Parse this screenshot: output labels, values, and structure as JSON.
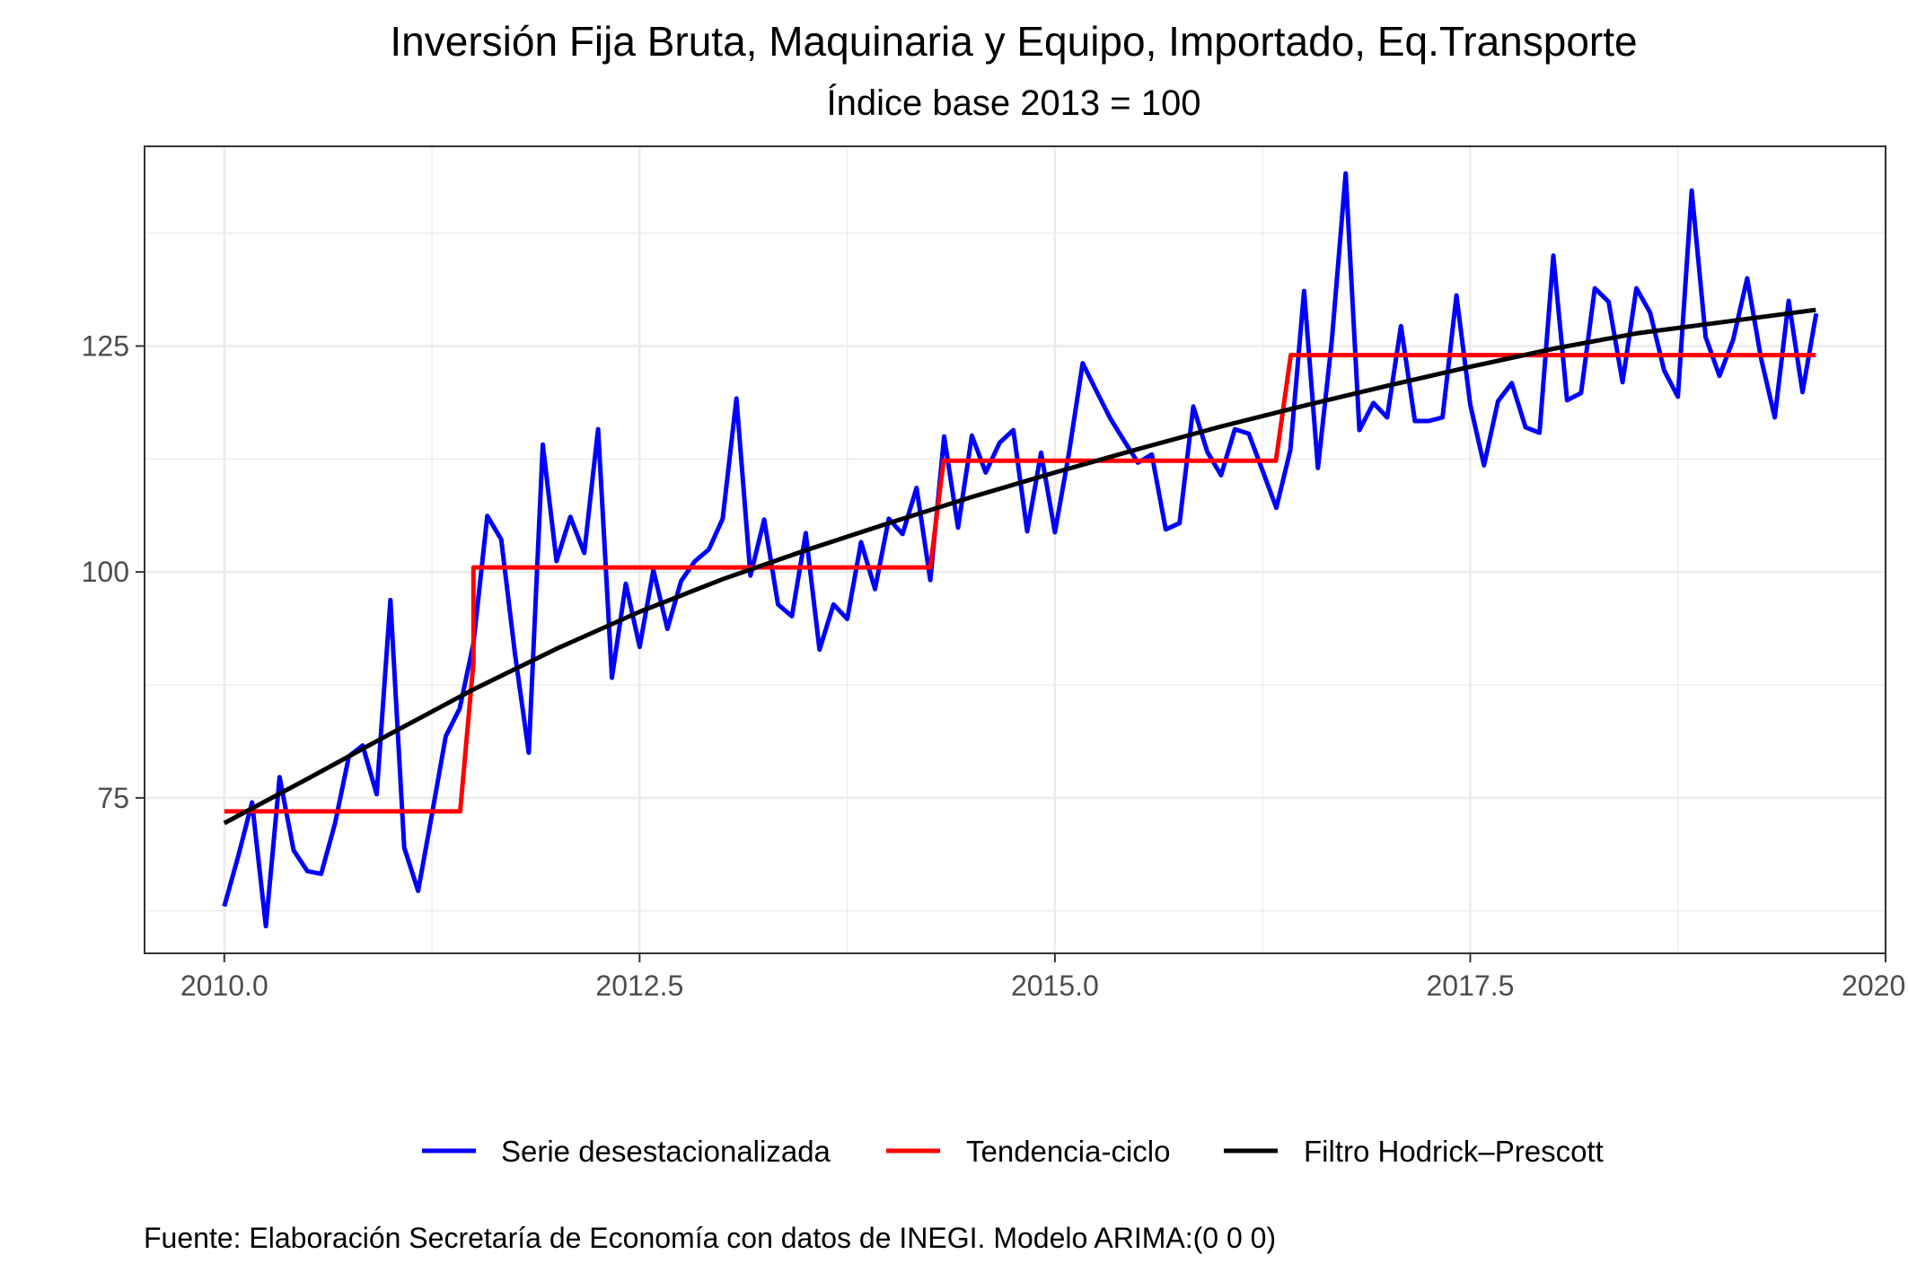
{
  "chart_data": {
    "type": "line",
    "title": "Inversión Fija Bruta, Maquinaria y Equipo, Importado, Eq.Transporte",
    "subtitle": "Índice base 2013 = 100",
    "xlabel": "",
    "ylabel": "",
    "caption": "Fuente: Elaboración Secretaría de Economía con datos de INEGI. Modelo ARIMA:(0 0 0)",
    "xlim": [
      2009.52,
      2020.0
    ],
    "ylim": [
      57.8,
      147.1
    ],
    "x_ticks": [
      2010.0,
      2012.5,
      2015.0,
      2017.5,
      2020.0
    ],
    "x_tick_labels": [
      "2010.0",
      "2012.5",
      "2015.0",
      "2017.5",
      "2020.0"
    ],
    "y_ticks": [
      75,
      100,
      125
    ],
    "y_tick_labels": [
      "75",
      "100",
      "125"
    ],
    "grid": true,
    "legend_position": "bottom",
    "series": [
      {
        "name": "Serie desestacionalizada",
        "color": "#0000ff",
        "x": [
          2010.0,
          2010.083,
          2010.167,
          2010.25,
          2010.333,
          2010.417,
          2010.5,
          2010.583,
          2010.667,
          2010.75,
          2010.833,
          2010.917,
          2011.0,
          2011.083,
          2011.167,
          2011.25,
          2011.333,
          2011.417,
          2011.5,
          2011.583,
          2011.667,
          2011.75,
          2011.833,
          2011.917,
          2012.0,
          2012.083,
          2012.167,
          2012.25,
          2012.333,
          2012.417,
          2012.5,
          2012.583,
          2012.667,
          2012.75,
          2012.833,
          2012.917,
          2013.0,
          2013.083,
          2013.167,
          2013.25,
          2013.333,
          2013.417,
          2013.5,
          2013.583,
          2013.667,
          2013.75,
          2013.833,
          2013.917,
          2014.0,
          2014.083,
          2014.167,
          2014.25,
          2014.333,
          2014.417,
          2014.5,
          2014.583,
          2014.667,
          2014.75,
          2014.833,
          2014.917,
          2015.0,
          2015.083,
          2015.167,
          2015.25,
          2015.333,
          2015.417,
          2015.5,
          2015.583,
          2015.667,
          2015.75,
          2015.833,
          2015.917,
          2016.0,
          2016.083,
          2016.167,
          2016.25,
          2016.333,
          2016.417,
          2016.5,
          2016.583,
          2016.667,
          2016.75,
          2016.833,
          2016.917,
          2017.0,
          2017.083,
          2017.167,
          2017.25,
          2017.333,
          2017.417,
          2017.5,
          2017.583,
          2017.667,
          2017.75,
          2017.833,
          2017.917,
          2018.0,
          2018.083,
          2018.167,
          2018.25,
          2018.333,
          2018.417,
          2018.5,
          2018.583,
          2018.667,
          2018.75,
          2018.833,
          2018.917,
          2019.0,
          2019.083,
          2019.167,
          2019.25,
          2019.333,
          2019.417,
          2019.5,
          2019.583
        ],
        "values": [
          63.0,
          68.5,
          74.5,
          60.8,
          77.3,
          69.2,
          66.9,
          66.6,
          72.2,
          79.6,
          80.8,
          75.4,
          96.9,
          69.5,
          64.7,
          73.2,
          81.8,
          84.9,
          92.1,
          106.2,
          103.6,
          90.9,
          80.0,
          114.1,
          101.2,
          106.1,
          102.1,
          115.8,
          88.3,
          98.7,
          91.7,
          100.2,
          93.7,
          99.0,
          101.2,
          102.5,
          105.9,
          119.2,
          99.6,
          105.8,
          96.4,
          95.1,
          104.3,
          91.4,
          96.4,
          94.8,
          103.3,
          98.1,
          105.9,
          104.2,
          109.3,
          99.1,
          115.0,
          104.9,
          115.1,
          111.0,
          114.3,
          115.7,
          104.5,
          113.2,
          104.4,
          113.0,
          123.1,
          120.0,
          117.0,
          114.5,
          112.1,
          113.0,
          104.7,
          105.4,
          118.3,
          113.3,
          110.7,
          115.8,
          115.3,
          111.2,
          107.1,
          113.5,
          131.1,
          111.5,
          125.6,
          144.1,
          115.7,
          118.7,
          117.1,
          127.2,
          116.7,
          116.7,
          117.1,
          130.6,
          118.5,
          111.8,
          118.9,
          120.9,
          116.0,
          115.4,
          135.0,
          119.0,
          119.8,
          131.4,
          129.9,
          121.0,
          131.4,
          128.7,
          122.3,
          119.4,
          142.2,
          126.0,
          121.7,
          125.7,
          132.5,
          123.7,
          117.1,
          130.0,
          119.9,
          128.6
        ]
      },
      {
        "name": "Tendencia-ciclo",
        "color": "#ff0000",
        "x": [
          2010.0,
          2011.42,
          2011.42,
          2011.5,
          2011.5,
          2014.25,
          2014.25,
          2014.33,
          2014.33,
          2016.33,
          2016.33,
          2016.42,
          2016.42,
          2019.58
        ],
        "values": [
          73.5,
          73.5,
          73.5,
          90.0,
          100.5,
          100.5,
          100.5,
          112.3,
          112.3,
          112.3,
          112.3,
          124.0,
          124.0,
          124.0
        ]
      },
      {
        "name": "Filtro Hodrick–Prescott",
        "color": "#000000",
        "x": [
          2010.0,
          2010.5,
          2011.0,
          2011.5,
          2012.0,
          2012.5,
          2013.0,
          2013.5,
          2014.0,
          2014.5,
          2015.0,
          2015.5,
          2016.0,
          2016.5,
          2017.0,
          2017.5,
          2018.0,
          2018.5,
          2019.0,
          2019.58
        ],
        "values": [
          72.2,
          77.1,
          82.1,
          87.0,
          91.5,
          95.6,
          99.2,
          102.4,
          105.4,
          108.3,
          111.0,
          113.6,
          116.1,
          118.4,
          120.6,
          122.7,
          124.7,
          126.4,
          127.6,
          129.0
        ]
      }
    ]
  }
}
